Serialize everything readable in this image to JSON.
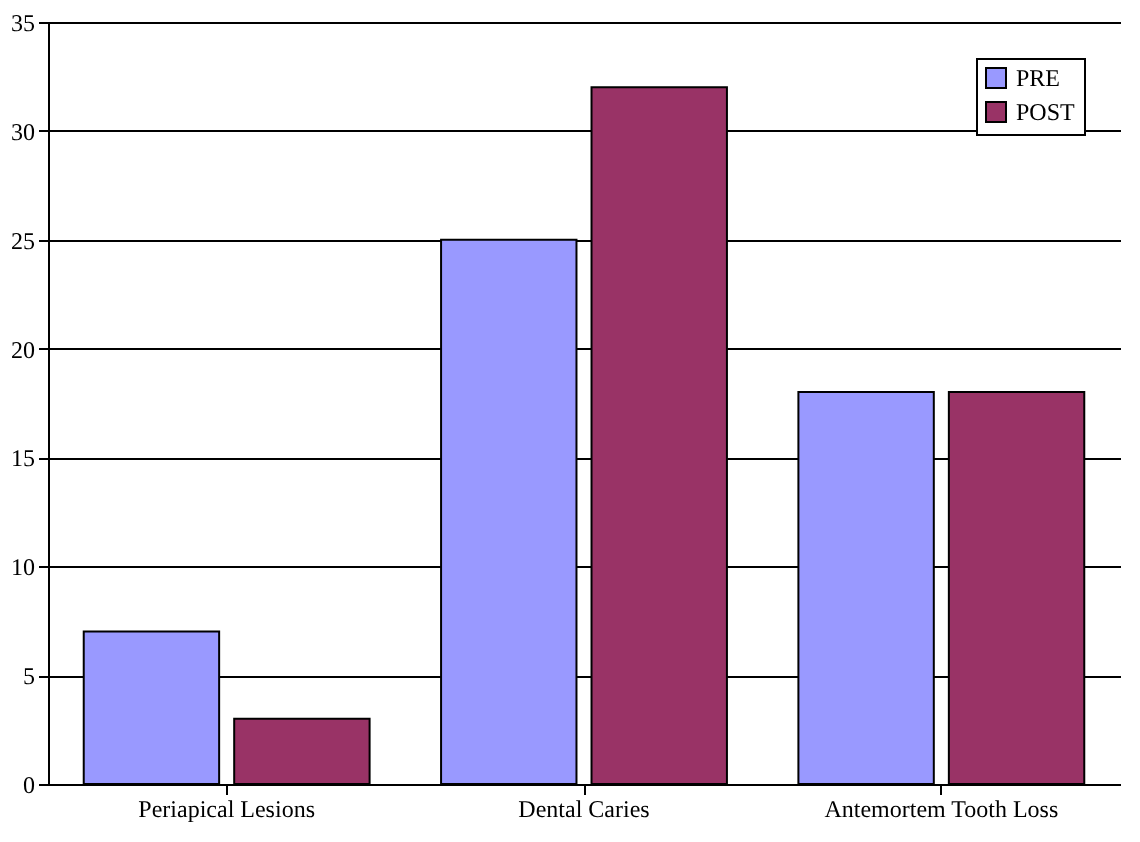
{
  "chart_data": {
    "type": "bar",
    "categories": [
      "Periapical Lesions",
      "Dental Caries",
      "Antemortem Tooth Loss"
    ],
    "series": [
      {
        "name": "PRE",
        "color": "#9999ff",
        "values": [
          7,
          25,
          18
        ]
      },
      {
        "name": "POST",
        "color": "#993366",
        "values": [
          3,
          32,
          18
        ]
      }
    ],
    "ylim": [
      0,
      35
    ],
    "yticks": [
      0,
      5,
      10,
      15,
      20,
      25,
      30,
      35
    ],
    "grid": "y",
    "legend": "top right"
  }
}
